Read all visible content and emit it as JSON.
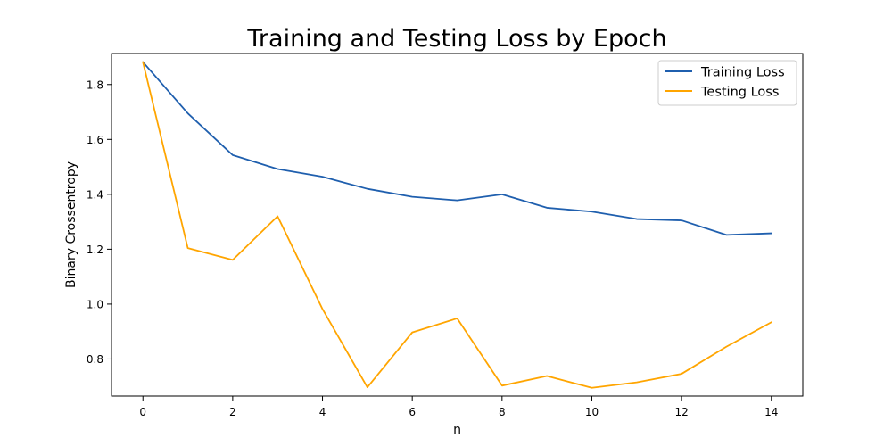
{
  "chart_data": {
    "type": "line",
    "title": "Training and Testing Loss by Epoch",
    "xlabel": "n",
    "ylabel": "Binary Crossentropy",
    "x": [
      0,
      1,
      2,
      3,
      4,
      5,
      6,
      7,
      8,
      9,
      10,
      11,
      12,
      13,
      14
    ],
    "series": [
      {
        "name": "Training Loss",
        "color": "#1f5fae",
        "values": [
          1.882,
          1.695,
          1.543,
          1.492,
          1.464,
          1.42,
          1.391,
          1.378,
          1.4,
          1.351,
          1.337,
          1.31,
          1.305,
          1.252,
          1.258
        ]
      },
      {
        "name": "Testing Loss",
        "color": "#ffa500",
        "values": [
          1.882,
          1.204,
          1.161,
          1.32,
          0.982,
          0.697,
          0.897,
          0.948,
          0.703,
          0.738,
          0.695,
          0.715,
          0.746,
          0.845,
          0.934
        ]
      }
    ],
    "xlim": [
      -0.7,
      14.7
    ],
    "ylim": [
      0.665,
      1.913
    ],
    "xticks": [
      0,
      2,
      4,
      6,
      8,
      10,
      12,
      14
    ],
    "xtick_labels": [
      "0",
      "2",
      "4",
      "6",
      "8",
      "10",
      "12",
      "14"
    ],
    "yticks": [
      0.8,
      1.0,
      1.2,
      1.4,
      1.6,
      1.8
    ],
    "ytick_labels": [
      "0.8",
      "1.0",
      "1.2",
      "1.4",
      "1.6",
      "1.8"
    ],
    "grid": false,
    "legend_position": "top-right"
  }
}
